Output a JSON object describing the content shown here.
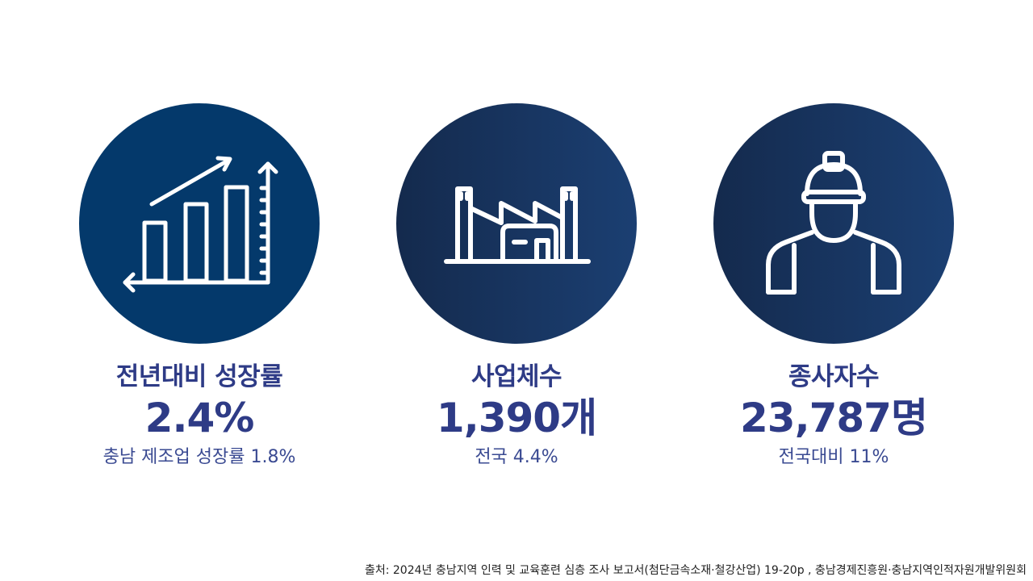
{
  "colors": {
    "title": "#2e3b86",
    "circle_solid": "#04396b",
    "circle_gradient_start": "#142a4d",
    "circle_gradient_end": "#1b3f72"
  },
  "stats": [
    {
      "icon": "bar-chart-growth-icon",
      "title": "전년대비 성장률",
      "value": "2.4%",
      "note": "충남 제조업 성장률 1.8%"
    },
    {
      "icon": "factory-icon",
      "title": "사업체수",
      "value": "1,390개",
      "note": "전국 4.4%"
    },
    {
      "icon": "worker-helmet-icon",
      "title": "종사자수",
      "value": "23,787명",
      "note": "전국대비 11%"
    }
  ],
  "source": "출처: 2024년 충남지역 인력 및 교육훈련 심층 조사 보고서(첨단금속소재·철강산업) 19-20p , 충남경제진흥원·충남지역인적자원개발위원회"
}
